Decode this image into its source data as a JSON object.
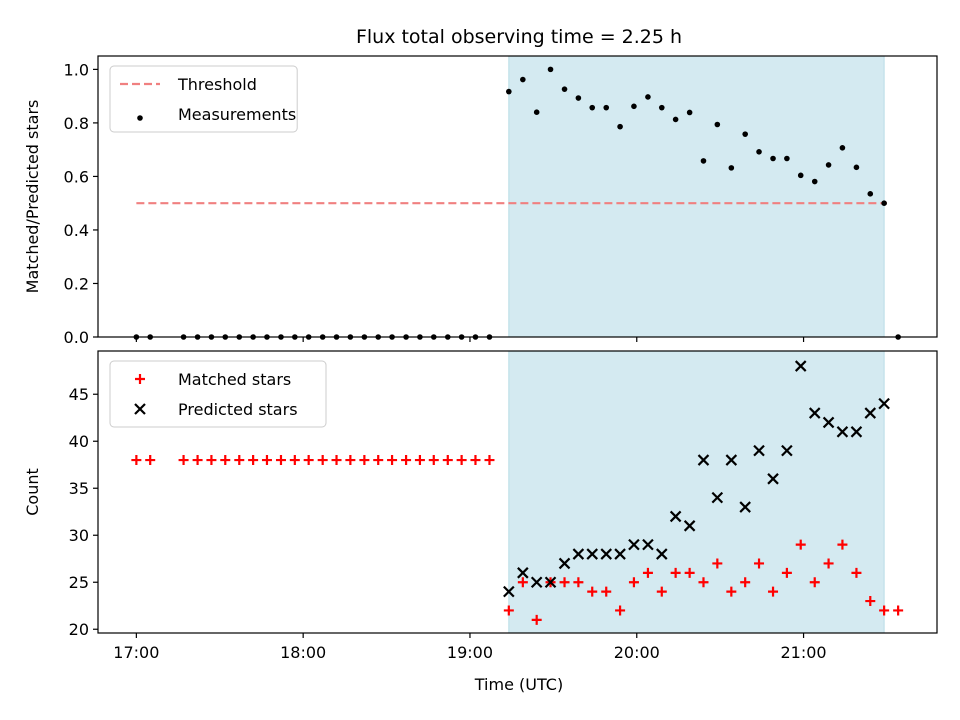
{
  "chart_data": {
    "title": "Flux total observing time = 2.25 h",
    "xlabel": "Time (UTC)",
    "x_ticks": [
      "17:00",
      "18:00",
      "19:00",
      "20:00",
      "21:00"
    ],
    "x_range_hours": [
      16.77,
      21.8
    ],
    "shaded_interval_hours": [
      19.233,
      21.483
    ],
    "shaded_color": "#d4eaf1",
    "panels": [
      {
        "type": "scatter",
        "ylabel": "Matched/Predicted stars",
        "ylim": [
          0.0,
          1.05
        ],
        "y_ticks": [
          "0.0",
          "0.2",
          "0.4",
          "0.6",
          "0.8",
          "1.0"
        ],
        "legend_position": "upper-left",
        "series": [
          {
            "name": "Threshold",
            "style": "dashed-line",
            "color": "#f08080",
            "x": [
              17.0,
              21.5
            ],
            "y": [
              0.5,
              0.5
            ]
          },
          {
            "name": "Measurements",
            "style": "dot",
            "color": "#000000",
            "x": [
              17.0,
              17.083,
              17.283,
              17.367,
              17.45,
              17.533,
              17.617,
              17.7,
              17.783,
              17.867,
              17.95,
              18.033,
              18.117,
              18.2,
              18.283,
              18.367,
              18.45,
              18.533,
              18.617,
              18.7,
              18.783,
              18.867,
              18.95,
              19.033,
              19.117,
              19.233,
              19.317,
              19.4,
              19.483,
              19.567,
              19.65,
              19.733,
              19.817,
              19.9,
              19.983,
              20.067,
              20.15,
              20.233,
              20.317,
              20.4,
              20.483,
              20.567,
              20.65,
              20.733,
              20.817,
              20.9,
              20.983,
              21.067,
              21.15,
              21.233,
              21.317,
              21.4,
              21.483,
              21.567
            ],
            "y": [
              0,
              0,
              0,
              0,
              0,
              0,
              0,
              0,
              0,
              0,
              0,
              0,
              0,
              0,
              0,
              0,
              0,
              0,
              0,
              0,
              0,
              0,
              0,
              0,
              0,
              0.917,
              0.962,
              0.84,
              1.0,
              0.926,
              0.893,
              0.857,
              0.857,
              0.786,
              0.862,
              0.897,
              0.857,
              0.813,
              0.839,
              0.658,
              0.794,
              0.632,
              0.758,
              0.692,
              0.667,
              0.667,
              0.604,
              0.581,
              0.643,
              0.707,
              0.634,
              0.535,
              0.5,
              0.0
            ]
          }
        ]
      },
      {
        "type": "scatter",
        "ylabel": "Count",
        "ylim": [
          19.6,
          49.6
        ],
        "y_ticks": [
          "20",
          "25",
          "30",
          "35",
          "40",
          "45"
        ],
        "legend_position": "upper-left",
        "series": [
          {
            "name": "Matched stars",
            "style": "plus",
            "color": "#ff0000",
            "x": [
              17.0,
              17.083,
              17.283,
              17.367,
              17.45,
              17.533,
              17.617,
              17.7,
              17.783,
              17.867,
              17.95,
              18.033,
              18.117,
              18.2,
              18.283,
              18.367,
              18.45,
              18.533,
              18.617,
              18.7,
              18.783,
              18.867,
              18.95,
              19.033,
              19.117,
              19.233,
              19.317,
              19.4,
              19.483,
              19.567,
              19.65,
              19.733,
              19.817,
              19.9,
              19.983,
              20.067,
              20.15,
              20.233,
              20.317,
              20.4,
              20.483,
              20.567,
              20.65,
              20.733,
              20.817,
              20.9,
              20.983,
              21.067,
              21.15,
              21.233,
              21.317,
              21.4,
              21.483,
              21.567
            ],
            "y": [
              38,
              38,
              38,
              38,
              38,
              38,
              38,
              38,
              38,
              38,
              38,
              38,
              38,
              38,
              38,
              38,
              38,
              38,
              38,
              38,
              38,
              38,
              38,
              38,
              38,
              22,
              25,
              21,
              25,
              25,
              25,
              24,
              24,
              22,
              25,
              26,
              24,
              26,
              26,
              25,
              27,
              24,
              25,
              27,
              24,
              26,
              29,
              25,
              27,
              29,
              26,
              23,
              22,
              22
            ]
          },
          {
            "name": "Predicted stars",
            "style": "x",
            "color": "#000000",
            "x": [
              19.233,
              19.317,
              19.4,
              19.483,
              19.567,
              19.65,
              19.733,
              19.817,
              19.9,
              19.983,
              20.067,
              20.15,
              20.233,
              20.317,
              20.4,
              20.483,
              20.567,
              20.65,
              20.733,
              20.817,
              20.9,
              20.983,
              21.067,
              21.15,
              21.233,
              21.317,
              21.4,
              21.483
            ],
            "y": [
              24,
              26,
              25,
              25,
              27,
              28,
              28,
              28,
              28,
              29,
              29,
              28,
              32,
              31,
              38,
              34,
              38,
              33,
              39,
              36,
              39,
              48,
              43,
              42,
              41,
              41,
              43,
              44
            ]
          }
        ]
      }
    ]
  }
}
